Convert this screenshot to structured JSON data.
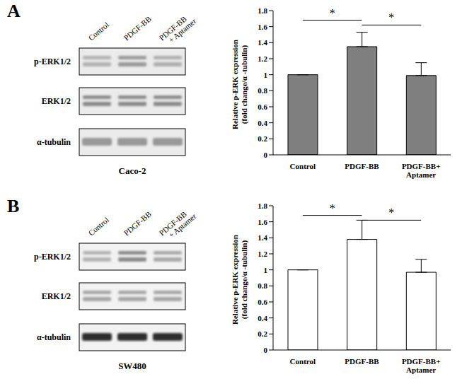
{
  "chart_data": [
    {
      "type": "bar",
      "panel": "A",
      "cell_line": "Caco-2",
      "blot_lanes": [
        "Control",
        "PDGF-BB",
        "PDGF-BB\n+ Aptamer"
      ],
      "blot_rows": [
        "p-ERK1/2",
        "ERK1/2",
        "α-tubulin"
      ],
      "categories": [
        "Control",
        "PDGF-BB",
        "PDGF-BB+\nAptamer"
      ],
      "values": [
        1,
        1.35,
        0.99
      ],
      "errors": [
        0,
        0.18,
        0.16
      ],
      "color": "#7f7f7f",
      "ylabel": "Relative p-ERK expression\n(fold change/α -tubulin)",
      "ylim": [
        0,
        1.8
      ],
      "yticks": [
        0,
        0.2,
        0.4,
        0.6,
        0.8,
        1,
        1.2,
        1.4,
        1.6,
        1.8
      ],
      "grid": false,
      "annotations": [
        {
          "text": "*",
          "x": [
            "Control",
            "PDGF-BB"
          ],
          "y": 1.68
        },
        {
          "text": "*",
          "x": [
            "PDGF-BB",
            "PDGF-BB+\nAptamer"
          ],
          "y": 1.62
        }
      ]
    },
    {
      "type": "bar",
      "panel": "B",
      "cell_line": "SW480",
      "blot_lanes": [
        "Control",
        "PDGF-BB",
        "PDGF-BB\n+ Aptamer"
      ],
      "blot_rows": [
        "p-ERK1/2",
        "ERK1/2",
        "α-tubulin"
      ],
      "categories": [
        "Control",
        "PDGF-BB",
        "PDGF-BB+\nAptamer"
      ],
      "values": [
        1,
        1.38,
        0.97
      ],
      "errors": [
        0,
        0.24,
        0.16
      ],
      "color": "#ffffff",
      "ylabel": "Relative p-ERK expression\n(fold change/α -tubulin)",
      "ylim": [
        0,
        1.8
      ],
      "yticks": [
        0,
        0.2,
        0.4,
        0.6,
        0.8,
        1,
        1.2,
        1.4,
        1.6,
        1.8
      ],
      "grid": false,
      "annotations": [
        {
          "text": "*",
          "x": [
            "Control",
            "PDGF-BB"
          ],
          "y": 1.68
        },
        {
          "text": "*",
          "x": [
            "PDGF-BB",
            "PDGF-BB+\nAptamer"
          ],
          "y": 1.62
        }
      ]
    }
  ]
}
